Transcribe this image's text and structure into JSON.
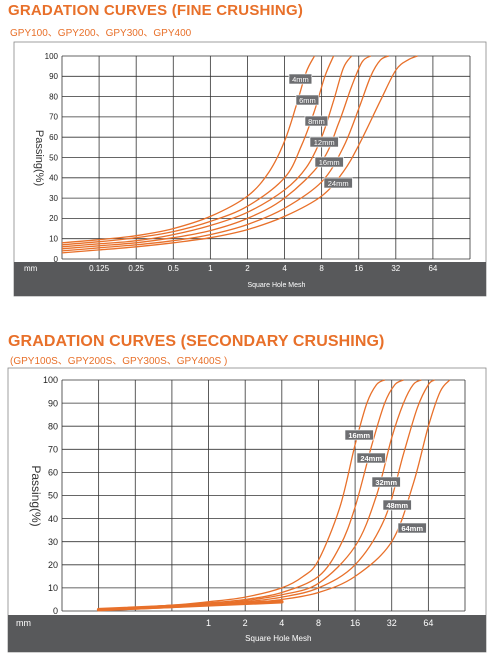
{
  "header1": {
    "title": "GRADATION CURVES  (FINE CRUSHING)",
    "subtitle": "GPY100、GPY200、GPY300、GPY400"
  },
  "header2": {
    "title": "GRADATION CURVES (SECONDARY CRUSHING)",
    "subtitle": "(GPY100S、GPY200S、GPY300S、GPY400S )"
  },
  "colors": {
    "curve": "#e8702a",
    "axis_band": "#58595b",
    "label_box": "#6d6e71",
    "grid": "#333333",
    "title": "#e8702a"
  },
  "chart_data": [
    {
      "type": "line",
      "title": "GRADATION CURVES  (FINE CRUSHING)",
      "subtitle": "GPY100、GPY200、GPY300、GPY400",
      "xlabel": "Square Hole Mesh",
      "ylabel": "Passing(%)",
      "x_unit_label": "mm",
      "xscale": "log2",
      "xlim": [
        0.0625,
        128
      ],
      "ylim": [
        0,
        100
      ],
      "x_ticks": [
        0.125,
        0.25,
        0.5,
        1,
        2,
        4,
        8,
        16,
        32,
        64
      ],
      "x_tick_labels": [
        "0.125",
        "0.25",
        "0.5",
        "1",
        "2",
        "4",
        "8",
        "16",
        "32",
        "64"
      ],
      "y_ticks": [
        0,
        10,
        20,
        30,
        40,
        50,
        60,
        70,
        80,
        90,
        100
      ],
      "grid": true,
      "series": [
        {
          "name": "4mm",
          "points": [
            [
              0.0625,
              8
            ],
            [
              0.125,
              9.5
            ],
            [
              0.25,
              11.5
            ],
            [
              0.5,
              15
            ],
            [
              1,
              21
            ],
            [
              2,
              31
            ],
            [
              3,
              43
            ],
            [
              4,
              58
            ],
            [
              5,
              76
            ],
            [
              6,
              92
            ],
            [
              7,
              100
            ]
          ]
        },
        {
          "name": "6mm",
          "points": [
            [
              0.0625,
              7
            ],
            [
              0.125,
              8.5
            ],
            [
              0.25,
              10.5
            ],
            [
              0.5,
              13.5
            ],
            [
              1,
              18.5
            ],
            [
              2,
              26
            ],
            [
              4,
              40
            ],
            [
              5.5,
              56
            ],
            [
              7,
              73
            ],
            [
              8.5,
              90
            ],
            [
              10,
              100
            ]
          ]
        },
        {
          "name": "8mm",
          "points": [
            [
              0.0625,
              6
            ],
            [
              0.125,
              7.5
            ],
            [
              0.25,
              9
            ],
            [
              0.5,
              12
            ],
            [
              1,
              16.5
            ],
            [
              2,
              23
            ],
            [
              4,
              34
            ],
            [
              6,
              45
            ],
            [
              8,
              60
            ],
            [
              10,
              78
            ],
            [
              12,
              94
            ],
            [
              14,
              100
            ]
          ]
        },
        {
          "name": "12mm",
          "points": [
            [
              0.0625,
              5
            ],
            [
              0.125,
              6.5
            ],
            [
              0.25,
              8
            ],
            [
              0.5,
              10.5
            ],
            [
              1,
              14
            ],
            [
              2,
              20
            ],
            [
              4,
              30
            ],
            [
              8,
              48
            ],
            [
              11,
              67
            ],
            [
              14,
              85
            ],
            [
              17,
              97
            ],
            [
              20,
              100
            ]
          ]
        },
        {
          "name": "16mm",
          "points": [
            [
              0.0625,
              4
            ],
            [
              0.125,
              5.5
            ],
            [
              0.25,
              7
            ],
            [
              0.5,
              9
            ],
            [
              1,
              12
            ],
            [
              2,
              17
            ],
            [
              4,
              25
            ],
            [
              8,
              38
            ],
            [
              12,
              55
            ],
            [
              16,
              74
            ],
            [
              20,
              90
            ],
            [
              24,
              98
            ],
            [
              28,
              100
            ]
          ]
        },
        {
          "name": "24mm",
          "points": [
            [
              0.0625,
              3
            ],
            [
              0.125,
              4.5
            ],
            [
              0.25,
              6
            ],
            [
              0.5,
              8
            ],
            [
              1,
              10.5
            ],
            [
              2,
              14.5
            ],
            [
              4,
              21
            ],
            [
              8,
              31
            ],
            [
              12,
              43
            ],
            [
              16,
              56
            ],
            [
              24,
              78
            ],
            [
              32,
              93
            ],
            [
              40,
              98
            ],
            [
              48,
              100
            ]
          ]
        }
      ]
    },
    {
      "type": "line",
      "title": "GRADATION CURVES (SECONDARY CRUSHING)",
      "subtitle": "(GPY100S、GPY200S、GPY300S、GPY400S )",
      "xlabel": "Square Hole Mesh",
      "ylabel": "Passing(%)",
      "x_unit_label": "mm",
      "xscale": "log2",
      "xlim": [
        0.0625,
        128
      ],
      "ylim": [
        0,
        100
      ],
      "x_ticks": [
        1,
        2,
        4,
        8,
        16,
        32,
        64
      ],
      "x_tick_labels": [
        "1",
        "2",
        "4",
        "8",
        "16",
        "32",
        "64"
      ],
      "y_ticks": [
        0,
        10,
        20,
        30,
        40,
        50,
        60,
        70,
        80,
        90,
        100
      ],
      "grid": true,
      "series": [
        {
          "name": "16mm",
          "points": [
            [
              0.125,
              0.5
            ],
            [
              0.5,
              2.5
            ],
            [
              1,
              4
            ],
            [
              2,
              6
            ],
            [
              4,
              10
            ],
            [
              6,
              15
            ],
            [
              8,
              22
            ],
            [
              12,
              45
            ],
            [
              16,
              72
            ],
            [
              20,
              90
            ],
            [
              24,
              98
            ],
            [
              28,
              100
            ]
          ]
        },
        {
          "name": "24mm",
          "points": [
            [
              0.125,
              0.5
            ],
            [
              0.5,
              2.5
            ],
            [
              1,
              3.5
            ],
            [
              2,
              5
            ],
            [
              4,
              8
            ],
            [
              8,
              15
            ],
            [
              12,
              28
            ],
            [
              16,
              45
            ],
            [
              22,
              72
            ],
            [
              28,
              90
            ],
            [
              34,
              98
            ],
            [
              40,
              100
            ]
          ]
        },
        {
          "name": "32mm",
          "points": [
            [
              0.125,
              0.5
            ],
            [
              0.5,
              2
            ],
            [
              1,
              3
            ],
            [
              2,
              4.5
            ],
            [
              4,
              7
            ],
            [
              8,
              12
            ],
            [
              16,
              28
            ],
            [
              24,
              50
            ],
            [
              32,
              75
            ],
            [
              40,
              90
            ],
            [
              48,
              98
            ],
            [
              56,
              100
            ]
          ]
        },
        {
          "name": "48mm",
          "points": [
            [
              0.125,
              0.3
            ],
            [
              0.5,
              1.8
            ],
            [
              1,
              2.8
            ],
            [
              2,
              4
            ],
            [
              4,
              6
            ],
            [
              8,
              10
            ],
            [
              16,
              20
            ],
            [
              28,
              40
            ],
            [
              40,
              68
            ],
            [
              52,
              88
            ],
            [
              64,
              98
            ],
            [
              72,
              100
            ]
          ]
        },
        {
          "name": "64mm",
          "points": [
            [
              0.125,
              0.2
            ],
            [
              0.5,
              1.5
            ],
            [
              1,
              2.5
            ],
            [
              2,
              3.5
            ],
            [
              4,
              5
            ],
            [
              8,
              8
            ],
            [
              16,
              15
            ],
            [
              32,
              30
            ],
            [
              48,
              55
            ],
            [
              64,
              80
            ],
            [
              80,
              95
            ],
            [
              96,
              100
            ]
          ]
        }
      ]
    }
  ]
}
